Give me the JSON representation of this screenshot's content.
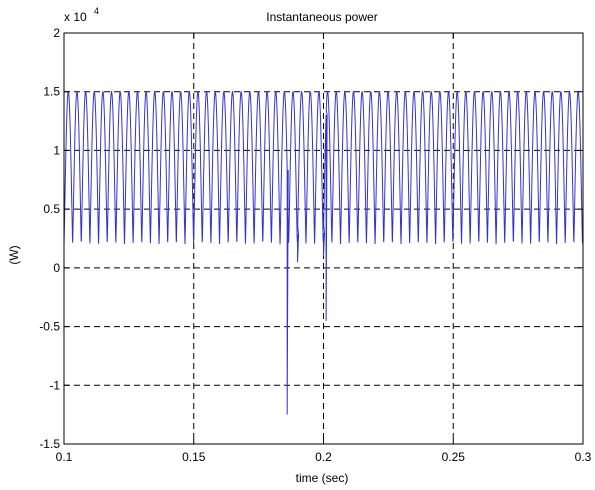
{
  "chart_data": {
    "type": "line",
    "title": "Instantaneous power",
    "xlabel": "time (sec)",
    "ylabel": "(W)",
    "y_exponent_label": "x 10",
    "y_exponent": "4",
    "xlim": [
      0.1,
      0.3
    ],
    "ylim": [
      -1.5,
      2
    ],
    "x_scale_factor": 1,
    "y_scale_factor": 10000,
    "grid": true,
    "grid_style": "dashed",
    "line_color": "#3333cc",
    "xticks": [
      0.1,
      0.15,
      0.2,
      0.25,
      0.3
    ],
    "xtick_labels": [
      "0.1",
      "0.15",
      "0.2",
      "0.25",
      "0.3"
    ],
    "yticks": [
      -1.5,
      -1,
      -0.5,
      0,
      0.5,
      1,
      1.5,
      2
    ],
    "ytick_labels": [
      "-1.5",
      "-1",
      "-0.5",
      "0",
      "0.5",
      "1",
      "1.5",
      "2"
    ],
    "series": [
      {
        "signal": {
          "kind": "periodic",
          "x_start": 0.1,
          "x_end": 0.3,
          "period": 0.00333,
          "min_value": 0.2,
          "max_value": 1.5
        },
        "spikes": [
          {
            "x": 0.186,
            "y": -1.25
          },
          {
            "x": 0.19,
            "y": 0.05
          },
          {
            "x": 0.2,
            "y": 0.1
          },
          {
            "x": 0.201,
            "y": -0.45
          }
        ]
      }
    ]
  }
}
